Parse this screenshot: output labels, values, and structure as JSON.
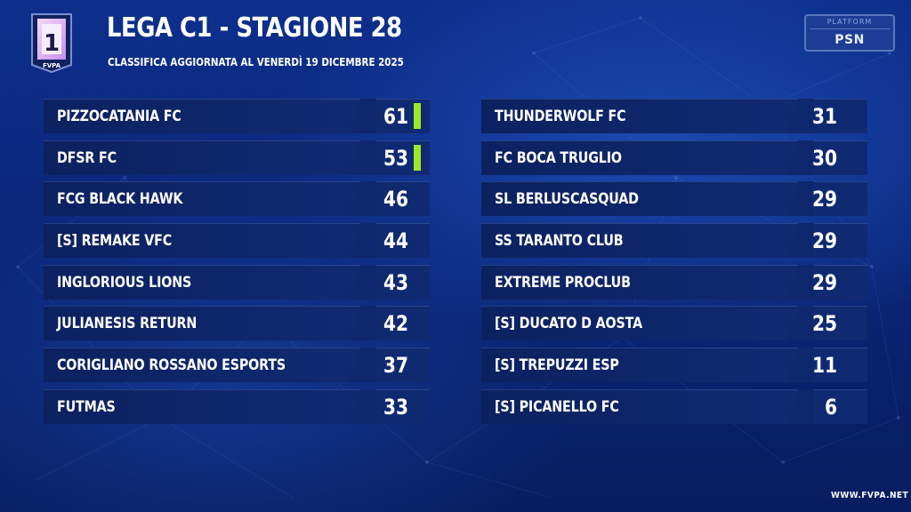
{
  "header": {
    "title": "LEGA C1 - STAGIONE 28",
    "subtitle": "CLASSIFICA AGGIORNATA AL VENERDÌ 19 DICEMBRE 2025",
    "logo_number": "1",
    "logo_text": "FVPA"
  },
  "platform": {
    "label": "PLATFORM",
    "value": "PSN"
  },
  "colors": {
    "qualification": "#9be82a",
    "background": "#0b2779"
  },
  "standings_left": [
    {
      "team": "PIZZOCATANIA FC",
      "points": "61",
      "qualified": true
    },
    {
      "team": "DFSR FC",
      "points": "53",
      "qualified": true
    },
    {
      "team": "FCG BLACK HAWK",
      "points": "46",
      "qualified": false
    },
    {
      "team": "[S] REMAKE VFC",
      "points": "44",
      "qualified": false
    },
    {
      "team": "INGLORIOUS LIONS",
      "points": "43",
      "qualified": false
    },
    {
      "team": "JULIANESIS RETURN",
      "points": "42",
      "qualified": false
    },
    {
      "team": "CORIGLIANO ROSSANO ESPORTS",
      "points": "37",
      "qualified": false
    },
    {
      "team": "FUTMAS",
      "points": "33",
      "qualified": false
    }
  ],
  "standings_right": [
    {
      "team": "THUNDERWOLF FC",
      "points": "31"
    },
    {
      "team": "FC BOCA TRUGLIO",
      "points": "30"
    },
    {
      "team": "SL BERLUSCASQUAD",
      "points": "29"
    },
    {
      "team": "SS TARANTO CLUB",
      "points": "29"
    },
    {
      "team": " EXTREME PROCLUB",
      "points": "29"
    },
    {
      "team": "[S] DUCATO D AOSTA",
      "points": "25"
    },
    {
      "team": " [S] TREPUZZI ESP",
      "points": "11"
    },
    {
      "team": "[S] PICANELLO FC",
      "points": "6"
    }
  ],
  "footer": {
    "url": "WWW.FVPA.NET"
  }
}
